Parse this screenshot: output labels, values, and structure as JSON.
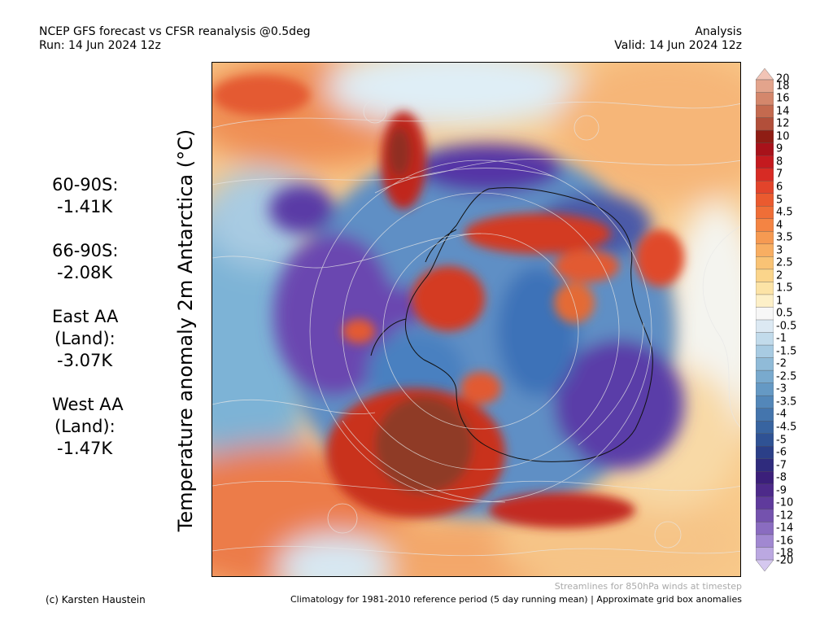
{
  "header": {
    "title_line1": "NCEP GFS forecast vs CFSR reanalysis @0.5deg",
    "title_line2": "Run: 14 Jun 2024 12z",
    "mode": "Analysis",
    "valid": "Valid: 14 Jun 2024 12z"
  },
  "ylabel": "Temperature anomaly 2m Antarctica (°C)",
  "stats": [
    {
      "label_line1": "60-90S:",
      "label_line2": "",
      "value": "-1.41K"
    },
    {
      "label_line1": "66-90S:",
      "label_line2": "",
      "value": "-2.08K"
    },
    {
      "label_line1": "East AA",
      "label_line2": "(Land):",
      "value": "-3.07K"
    },
    {
      "label_line1": "West AA",
      "label_line2": "(Land):",
      "value": "-1.47K"
    }
  ],
  "colorbar": {
    "labels": [
      "20",
      "18",
      "16",
      "14",
      "12",
      "10",
      "9",
      "8",
      "7",
      "6",
      "5",
      "4.5",
      "4",
      "3.5",
      "3",
      "2.5",
      "2",
      "1.5",
      "1",
      "0.5",
      "-0.5",
      "-1",
      "-1.5",
      "-2",
      "-2.5",
      "-3",
      "-3.5",
      "-4",
      "-4.5",
      "-5",
      "-6",
      "-7",
      "-8",
      "-9",
      "-10",
      "-12",
      "-14",
      "-16",
      "-18",
      "-20"
    ],
    "colors": [
      "#f2c4b6",
      "#e3a48c",
      "#d4876c",
      "#c46a4f",
      "#b24f3a",
      "#8f1d14",
      "#a8121a",
      "#c41a1f",
      "#d72b24",
      "#e2442b",
      "#ea5a2f",
      "#ef6e37",
      "#f48443",
      "#f69a52",
      "#f8ae62",
      "#f9c375",
      "#fbd58b",
      "#fce3a6",
      "#fdf0c8",
      "#f7f7f7",
      "#dce9f3",
      "#c2dbeb",
      "#a8cbe2",
      "#90bbd8",
      "#79aace",
      "#6599c4",
      "#5387b9",
      "#4475ad",
      "#3864a0",
      "#2f5294",
      "#2b3f88",
      "#2f2b7d",
      "#3b1f7a",
      "#4d2a8a",
      "#5f3a9c",
      "#7452ae",
      "#8a6cc0",
      "#a188d1",
      "#bba8e1",
      "#d5c8ef"
    ]
  },
  "footer": {
    "streamlines_note": "Streamlines for 850hPa winds at timestep",
    "credit": "(c) Karsten Haustein",
    "climatology": "Climatology for 1981-2010 reference period (5 day running mean) | Approximate grid box anomalies"
  }
}
